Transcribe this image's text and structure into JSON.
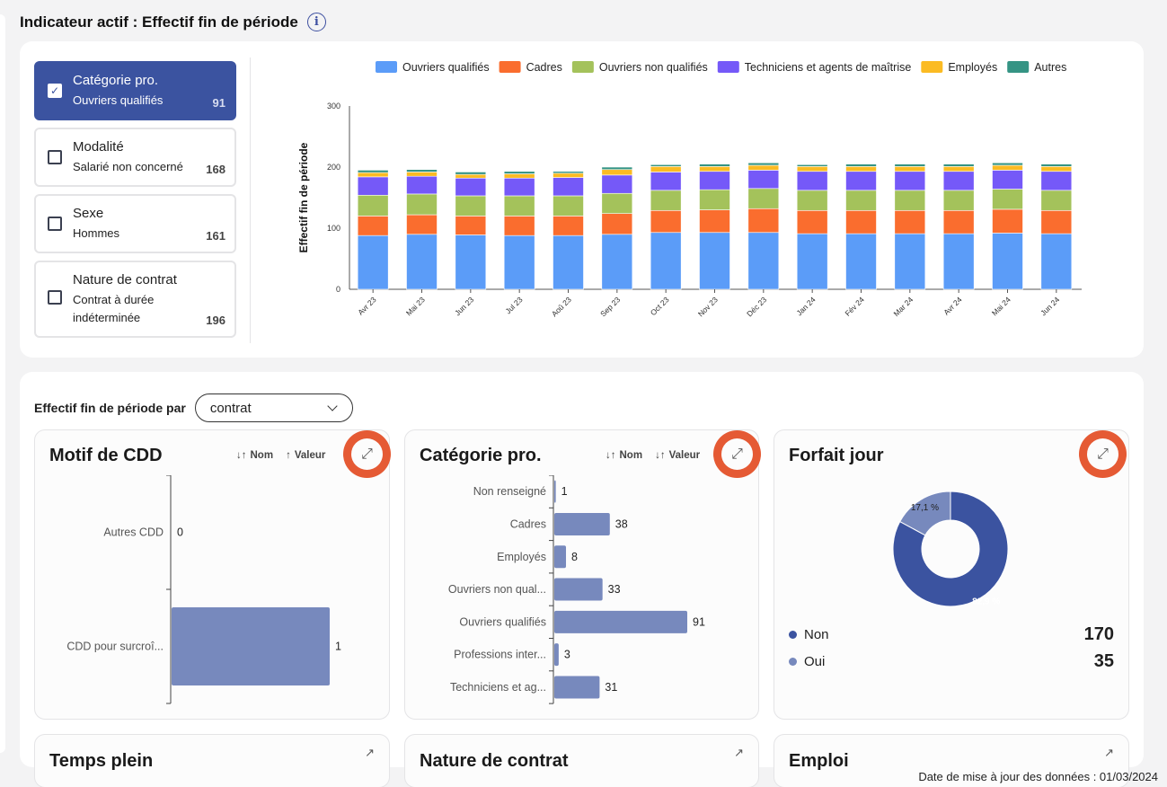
{
  "header": {
    "title": "Indicateur actif : Effectif fin de période",
    "info_icon": "info-icon"
  },
  "filters": [
    {
      "title": "Catégorie pro.",
      "value": "Ouvriers qualifiés",
      "count": "91",
      "checked": true
    },
    {
      "title": "Modalité",
      "value": "Salarié non concerné",
      "count": "168",
      "checked": false
    },
    {
      "title": "Sexe",
      "value": "Hommes",
      "count": "161",
      "checked": false
    },
    {
      "title": "Nature de contrat",
      "value": "Contrat à durée indéterminée",
      "count": "196",
      "checked": false
    }
  ],
  "chart_data": {
    "type": "bar",
    "stacked": true,
    "ylabel": "Effectif fin de période",
    "ylim": [
      0,
      300
    ],
    "yticks": [
      0,
      100,
      200,
      300
    ],
    "categories": [
      "Avr 23",
      "Mai 23",
      "Jun 23",
      "Jul 23",
      "Aoû 23",
      "Sep 23",
      "Oct 23",
      "Nov 23",
      "Déc 23",
      "Jan 24",
      "Fév 24",
      "Mar 24",
      "Avr 24",
      "Mai 24",
      "Jun 24"
    ],
    "legend_position": "top",
    "series": [
      {
        "name": "Ouvriers qualifiés",
        "color": "#5b9cf8",
        "values": [
          88,
          90,
          89,
          88,
          88,
          90,
          93,
          93,
          93,
          91,
          91,
          91,
          91,
          92,
          91
        ]
      },
      {
        "name": "Cadres",
        "color": "#fa6d2e",
        "values": [
          32,
          32,
          31,
          32,
          32,
          34,
          36,
          37,
          39,
          38,
          38,
          38,
          38,
          39,
          38
        ]
      },
      {
        "name": "Ouvriers non qualifiés",
        "color": "#a4c25b",
        "values": [
          34,
          34,
          33,
          33,
          33,
          33,
          33,
          33,
          33,
          33,
          33,
          33,
          33,
          33,
          33
        ]
      },
      {
        "name": "Techniciens et agents de maîtrise",
        "color": "#7559f8",
        "values": [
          30,
          29,
          29,
          29,
          30,
          30,
          30,
          30,
          30,
          31,
          31,
          31,
          31,
          31,
          31
        ]
      },
      {
        "name": "Employés",
        "color": "#fbbb23",
        "values": [
          7,
          7,
          6,
          7,
          7,
          9,
          9,
          8,
          8,
          8,
          8,
          8,
          8,
          8,
          8
        ]
      },
      {
        "name": "Autres",
        "color": "#359484",
        "values": [
          4,
          4,
          4,
          4,
          3,
          4,
          3,
          4,
          4,
          3,
          4,
          4,
          4,
          4,
          4
        ]
      }
    ]
  },
  "breakdown": {
    "label": "Effectif fin de période par",
    "select_value": "contrat"
  },
  "sort_labels": {
    "name": "Nom",
    "value": "Valeur"
  },
  "cards": {
    "motif": {
      "title": "Motif de CDD",
      "bar_color": "#7789bd",
      "items": [
        {
          "label": "Autres CDD",
          "value": 0
        },
        {
          "label": "CDD pour surcroî...",
          "value": 1
        }
      ]
    },
    "categorie": {
      "title": "Catégorie pro.",
      "bar_color": "#7789bd",
      "items": [
        {
          "label": "Non renseigné",
          "value": 1
        },
        {
          "label": "Cadres",
          "value": 38
        },
        {
          "label": "Employés",
          "value": 8
        },
        {
          "label": "Ouvriers non qual...",
          "value": 33
        },
        {
          "label": "Ouvriers qualifiés",
          "value": 91
        },
        {
          "label": "Professions inter...",
          "value": 3
        },
        {
          "label": "Techniciens et ag...",
          "value": 31
        }
      ]
    },
    "forfait": {
      "title": "Forfait jour",
      "slices": [
        {
          "name": "Non",
          "value": "170",
          "pct": "82,9 %",
          "fraction": 0.829,
          "color": "#3b53a0"
        },
        {
          "name": "Oui",
          "value": "35",
          "pct": "17,1 %",
          "fraction": 0.171,
          "color": "#7789bd"
        }
      ]
    },
    "row2_titles": [
      "Temps plein",
      "Nature de contrat",
      "Emploi"
    ]
  },
  "footer": {
    "update_text": "Date de mise à jour des données : 01/03/2024"
  }
}
